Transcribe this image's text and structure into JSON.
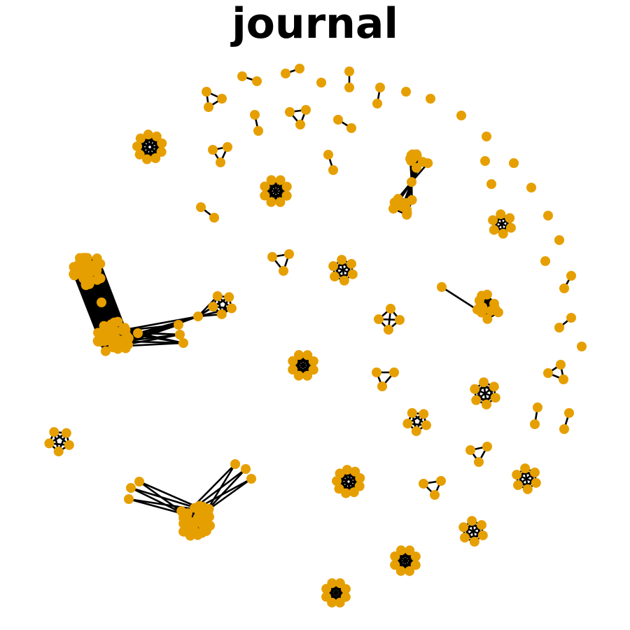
{
  "title": "journal"
}
